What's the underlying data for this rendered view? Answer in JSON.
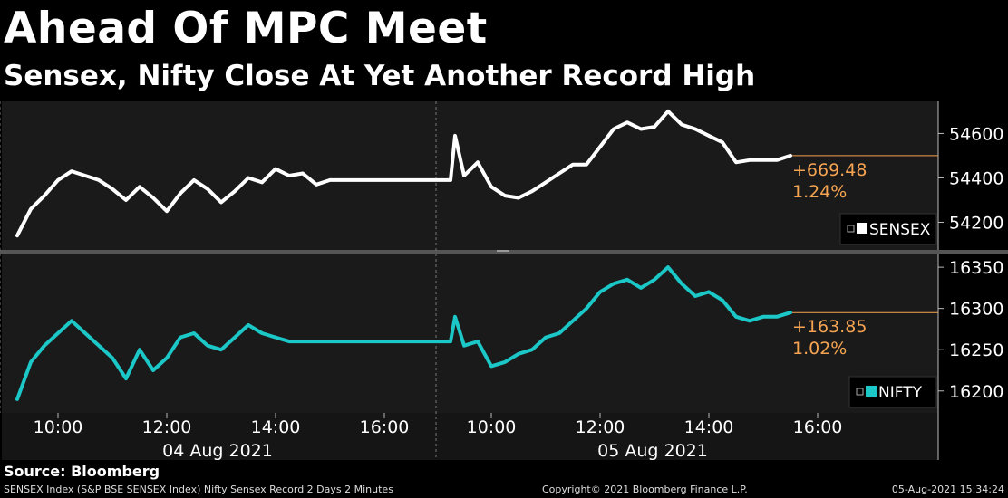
{
  "header": {
    "title": "Ahead Of MPC Meet",
    "subtitle": "Sensex, Nifty Close At Yet Another Record High"
  },
  "source": "Source: Bloomberg",
  "footer": {
    "left": "SENSEX Index (S&P BSE SENSEX Index) Nifty Sensex Record 2 Days 2 Minutes",
    "middle": "Copyright© 2021 Bloomberg Finance L.P.",
    "right": "05-Aug-2021 15:34:24"
  },
  "colors": {
    "sensex": "#ffffff",
    "nifty": "#1cc7c7",
    "annotation": "#f5a452",
    "background": "#1a1a1a"
  },
  "chart_data": [
    {
      "type": "line",
      "legend_position": "bottom-right",
      "series": [
        {
          "name": "SENSEX",
          "x": [
            "04 Aug 09:15",
            "09:30",
            "09:45",
            "10:00",
            "10:15",
            "10:30",
            "10:45",
            "11:00",
            "11:15",
            "11:30",
            "11:45",
            "12:00",
            "12:15",
            "12:30",
            "12:45",
            "13:00",
            "13:15",
            "13:30",
            "13:45",
            "14:00",
            "14:15",
            "14:30",
            "14:45",
            "15:00",
            "15:15",
            "15:30",
            "05 Aug 09:15",
            "09:20",
            "09:30",
            "09:45",
            "10:00",
            "10:15",
            "10:30",
            "10:45",
            "11:00",
            "11:15",
            "11:30",
            "11:45",
            "12:00",
            "12:15",
            "12:30",
            "12:45",
            "13:00",
            "13:15",
            "13:30",
            "13:45",
            "14:00",
            "14:15",
            "14:30",
            "14:45",
            "15:00",
            "15:15",
            "15:30"
          ],
          "values": [
            54140,
            54260,
            54320,
            54390,
            54430,
            54410,
            54390,
            54350,
            54300,
            54360,
            54310,
            54250,
            54330,
            54390,
            54350,
            54290,
            54340,
            54400,
            54380,
            54440,
            54410,
            54420,
            54370,
            54390,
            54390,
            54390,
            54390,
            54590,
            54410,
            54470,
            54360,
            54320,
            54310,
            54340,
            54380,
            54420,
            54460,
            54460,
            54540,
            54620,
            54650,
            54620,
            54630,
            54700,
            54640,
            54620,
            54590,
            54560,
            54470,
            54480,
            54480,
            54480,
            54500
          ],
          "last_change": "+669.48",
          "last_change_pct": "1.24%"
        }
      ],
      "yticks": [
        "54600",
        "54400",
        "54200"
      ],
      "ylim": [
        54100,
        54720
      ]
    },
    {
      "type": "line",
      "legend_position": "bottom-right",
      "series": [
        {
          "name": "NIFTY",
          "x": [
            "04 Aug 09:15",
            "09:30",
            "09:45",
            "10:00",
            "10:15",
            "10:30",
            "10:45",
            "11:00",
            "11:15",
            "11:30",
            "11:45",
            "12:00",
            "12:15",
            "12:30",
            "12:45",
            "13:00",
            "13:15",
            "13:30",
            "13:45",
            "14:00",
            "14:15",
            "14:30",
            "14:45",
            "15:00",
            "15:15",
            "15:30",
            "05 Aug 09:15",
            "09:20",
            "09:30",
            "09:45",
            "10:00",
            "10:15",
            "10:30",
            "10:45",
            "11:00",
            "11:15",
            "11:30",
            "11:45",
            "12:00",
            "12:15",
            "12:30",
            "12:45",
            "13:00",
            "13:15",
            "13:30",
            "13:45",
            "14:00",
            "14:15",
            "14:30",
            "14:45",
            "15:00",
            "15:15",
            "15:30"
          ],
          "values": [
            16190,
            16235,
            16255,
            16270,
            16285,
            16270,
            16255,
            16240,
            16215,
            16250,
            16225,
            16240,
            16265,
            16270,
            16255,
            16250,
            16265,
            16280,
            16270,
            16265,
            16260,
            16260,
            16260,
            16260,
            16260,
            16260,
            16260,
            16290,
            16255,
            16260,
            16230,
            16235,
            16245,
            16250,
            16265,
            16270,
            16285,
            16300,
            16320,
            16330,
            16335,
            16325,
            16335,
            16350,
            16330,
            16315,
            16320,
            16310,
            16290,
            16285,
            16290,
            16290,
            16295
          ],
          "last_change": "+163.85",
          "last_change_pct": "1.02%"
        }
      ],
      "yticks": [
        "16350",
        "16300",
        "16250",
        "16200"
      ],
      "ylim": [
        16180,
        16360
      ]
    }
  ],
  "x_axis": {
    "ticks": [
      "10:00",
      "12:00",
      "14:00",
      "16:00",
      "10:00",
      "12:00",
      "14:00",
      "16:00"
    ],
    "dates": [
      "04 Aug 2021",
      "05 Aug 2021"
    ]
  }
}
